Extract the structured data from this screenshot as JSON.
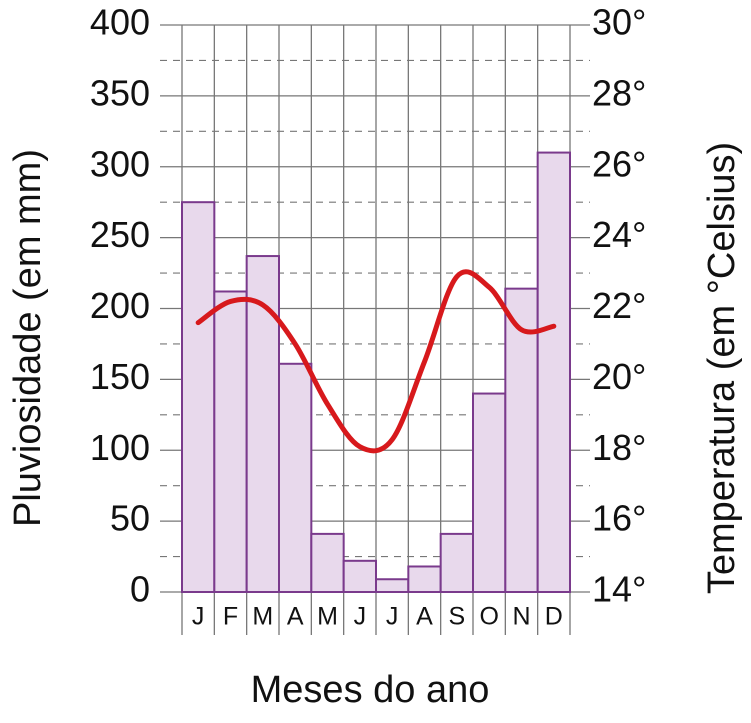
{
  "chart_data": {
    "type": "bar",
    "categories": [
      "J",
      "F",
      "M",
      "A",
      "M",
      "J",
      "J",
      "A",
      "S",
      "O",
      "N",
      "D"
    ],
    "x_label": "Meses do ano",
    "y_label": "Pluviosidade (em mm)",
    "y2_label": "Temperatura (em °Celsius)",
    "series": [
      {
        "type": "bar",
        "color": "#e8d9ec",
        "edge_color": "#7a3a8c",
        "values": [
          275,
          212,
          237,
          161,
          41,
          22,
          9,
          18,
          41,
          140,
          214,
          310
        ]
      },
      {
        "type": "line",
        "axis": "y2",
        "color": "#d7191c",
        "values": [
          21.6,
          22.2,
          22.1,
          21.0,
          19.3,
          18.1,
          18.3,
          20.5,
          22.9,
          22.6,
          21.4,
          21.5
        ]
      }
    ],
    "ylim": [
      0,
      400
    ],
    "yticks": [
      0,
      50,
      100,
      150,
      200,
      250,
      300,
      350,
      400
    ],
    "y2lim": [
      14,
      30
    ],
    "y2ticks": [
      {
        "value": 14,
        "label": "14°"
      },
      {
        "value": 16,
        "label": "16°"
      },
      {
        "value": 18,
        "label": "18°"
      },
      {
        "value": 20,
        "label": "20°"
      },
      {
        "value": 22,
        "label": "22°"
      },
      {
        "value": 24,
        "label": "24°"
      },
      {
        "value": 26,
        "label": "26°"
      },
      {
        "value": 28,
        "label": "28°"
      },
      {
        "value": 30,
        "label": "30°"
      }
    ],
    "grid": true
  }
}
